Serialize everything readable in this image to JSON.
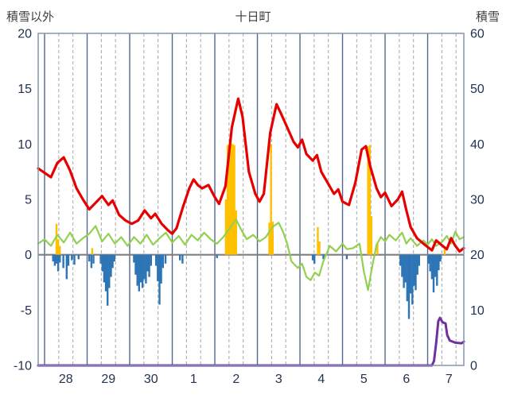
{
  "header": {
    "left_axis_title": "積雪以外",
    "title": "十日町",
    "right_axis_title": "積雪"
  },
  "chart_data": {
    "type": "line",
    "title": "十日町",
    "left_axis": {
      "label": "積雪以外",
      "min": -10,
      "max": 20,
      "ticks": [
        20,
        15,
        10,
        5,
        0,
        -5,
        -10
      ]
    },
    "right_axis": {
      "label": "積雪",
      "min": 0,
      "max": 60,
      "ticks": [
        60,
        50,
        40,
        30,
        20,
        10,
        0
      ]
    },
    "x_axis": {
      "domain": [
        -0.15,
        9.85
      ],
      "day_labels": [
        "28",
        "29",
        "30",
        "1",
        "2",
        "3",
        "4",
        "5",
        "6",
        "7"
      ],
      "minor_gridlines_per_day": 2
    },
    "grid": {
      "vertical_solid_at_midnights": true,
      "vertical_dashed_minor": true,
      "horizontal": false,
      "zero_line": true
    },
    "colors": {
      "red": "#e60000",
      "green": "#92d050",
      "orange": "#ffc000",
      "blue": "#2e75b6",
      "purple": "#7030a0",
      "grid_minor": "#a6a6a6",
      "grid_major": "#54678f",
      "border": "#8496b0",
      "zero_line": "#7f7f7f",
      "text": "#233250"
    },
    "series": {
      "red_line": {
        "axis": "left",
        "color_key": "red",
        "points": [
          [
            -0.15,
            7.8
          ],
          [
            0,
            7.4
          ],
          [
            0.15,
            7.0
          ],
          [
            0.3,
            8.3
          ],
          [
            0.45,
            8.8
          ],
          [
            0.6,
            7.6
          ],
          [
            0.75,
            6.0
          ],
          [
            0.9,
            5.0
          ],
          [
            1.05,
            4.1
          ],
          [
            1.2,
            4.7
          ],
          [
            1.35,
            5.3
          ],
          [
            1.5,
            4.5
          ],
          [
            1.6,
            4.9
          ],
          [
            1.75,
            3.6
          ],
          [
            1.9,
            3.1
          ],
          [
            2.05,
            2.8
          ],
          [
            2.2,
            3.1
          ],
          [
            2.35,
            4.0
          ],
          [
            2.5,
            3.3
          ],
          [
            2.6,
            3.7
          ],
          [
            2.75,
            2.8
          ],
          [
            2.9,
            2.2
          ],
          [
            3.0,
            1.9
          ],
          [
            3.1,
            2.4
          ],
          [
            3.25,
            4.3
          ],
          [
            3.4,
            6.0
          ],
          [
            3.5,
            6.8
          ],
          [
            3.6,
            6.3
          ],
          [
            3.7,
            6.0
          ],
          [
            3.85,
            6.3
          ],
          [
            4.0,
            5.2
          ],
          [
            4.1,
            4.6
          ],
          [
            4.25,
            6.2
          ],
          [
            4.4,
            11.5
          ],
          [
            4.55,
            14.1
          ],
          [
            4.65,
            12.5
          ],
          [
            4.8,
            7.5
          ],
          [
            4.95,
            5.5
          ],
          [
            5.05,
            4.8
          ],
          [
            5.15,
            5.5
          ],
          [
            5.3,
            11.0
          ],
          [
            5.45,
            13.6
          ],
          [
            5.55,
            12.8
          ],
          [
            5.7,
            11.5
          ],
          [
            5.85,
            10.2
          ],
          [
            5.95,
            9.7
          ],
          [
            6.05,
            10.4
          ],
          [
            6.15,
            9.1
          ],
          [
            6.3,
            8.5
          ],
          [
            6.4,
            9.0
          ],
          [
            6.5,
            7.5
          ],
          [
            6.65,
            6.5
          ],
          [
            6.8,
            5.5
          ],
          [
            6.9,
            5.9
          ],
          [
            7.0,
            4.8
          ],
          [
            7.15,
            4.5
          ],
          [
            7.3,
            6.5
          ],
          [
            7.45,
            9.5
          ],
          [
            7.55,
            9.8
          ],
          [
            7.65,
            8.0
          ],
          [
            7.8,
            6.0
          ],
          [
            7.9,
            5.2
          ],
          [
            8.0,
            5.6
          ],
          [
            8.15,
            4.4
          ],
          [
            8.3,
            5.0
          ],
          [
            8.4,
            5.7
          ],
          [
            8.5,
            4.0
          ],
          [
            8.6,
            2.5
          ],
          [
            8.75,
            1.5
          ],
          [
            8.9,
            1.0
          ],
          [
            9.0,
            0.7
          ],
          [
            9.1,
            0.4
          ],
          [
            9.2,
            1.3
          ],
          [
            9.35,
            0.8
          ],
          [
            9.45,
            0.5
          ],
          [
            9.55,
            1.5
          ],
          [
            9.65,
            0.8
          ],
          [
            9.75,
            0.3
          ],
          [
            9.85,
            0.6
          ]
        ]
      },
      "green_line": {
        "axis": "left",
        "color_key": "green",
        "points": [
          [
            -0.15,
            1.0
          ],
          [
            0,
            1.4
          ],
          [
            0.15,
            0.8
          ],
          [
            0.3,
            1.8
          ],
          [
            0.45,
            1.1
          ],
          [
            0.6,
            2.0
          ],
          [
            0.75,
            1.0
          ],
          [
            0.9,
            1.5
          ],
          [
            1.05,
            1.9
          ],
          [
            1.2,
            2.6
          ],
          [
            1.35,
            1.2
          ],
          [
            1.5,
            1.9
          ],
          [
            1.65,
            1.0
          ],
          [
            1.8,
            1.6
          ],
          [
            1.95,
            0.8
          ],
          [
            2.1,
            1.6
          ],
          [
            2.25,
            1.0
          ],
          [
            2.4,
            1.8
          ],
          [
            2.55,
            0.9
          ],
          [
            2.7,
            1.5
          ],
          [
            2.85,
            2.0
          ],
          [
            3.0,
            1.1
          ],
          [
            3.15,
            1.7
          ],
          [
            3.3,
            0.9
          ],
          [
            3.45,
            1.8
          ],
          [
            3.6,
            1.3
          ],
          [
            3.75,
            2.0
          ],
          [
            3.9,
            1.4
          ],
          [
            4.05,
            1.0
          ],
          [
            4.2,
            1.6
          ],
          [
            4.35,
            2.4
          ],
          [
            4.5,
            3.2
          ],
          [
            4.6,
            2.4
          ],
          [
            4.75,
            1.4
          ],
          [
            4.9,
            1.8
          ],
          [
            5.05,
            1.2
          ],
          [
            5.2,
            1.6
          ],
          [
            5.35,
            2.5
          ],
          [
            5.5,
            2.9
          ],
          [
            5.6,
            2.1
          ],
          [
            5.7,
            1.0
          ],
          [
            5.8,
            -0.6
          ],
          [
            5.95,
            -1.2
          ],
          [
            6.05,
            -0.8
          ],
          [
            6.15,
            -2.0
          ],
          [
            6.25,
            -2.3
          ],
          [
            6.35,
            -1.6
          ],
          [
            6.45,
            -1.9
          ],
          [
            6.55,
            -0.6
          ],
          [
            6.7,
            0.8
          ],
          [
            6.85,
            0.3
          ],
          [
            7.0,
            1.0
          ],
          [
            7.1,
            0.5
          ],
          [
            7.25,
            0.6
          ],
          [
            7.4,
            1.0
          ],
          [
            7.5,
            -1.5
          ],
          [
            7.6,
            -3.2
          ],
          [
            7.7,
            -1.0
          ],
          [
            7.8,
            0.9
          ],
          [
            7.9,
            1.6
          ],
          [
            8.0,
            1.2
          ],
          [
            8.1,
            1.8
          ],
          [
            8.25,
            1.3
          ],
          [
            8.4,
            2.0
          ],
          [
            8.5,
            1.0
          ],
          [
            8.6,
            1.5
          ],
          [
            8.75,
            0.8
          ],
          [
            8.9,
            1.3
          ],
          [
            9.0,
            0.9
          ],
          [
            9.1,
            1.4
          ],
          [
            9.2,
            0.8
          ],
          [
            9.35,
            1.2
          ],
          [
            9.45,
            1.7
          ],
          [
            9.55,
            1.0
          ],
          [
            9.65,
            2.1
          ],
          [
            9.75,
            1.4
          ],
          [
            9.85,
            1.6
          ]
        ]
      },
      "orange_bars": {
        "axis": "left",
        "color_key": "orange",
        "points": [
          [
            0.28,
            2.8
          ],
          [
            0.32,
            1.4
          ],
          [
            0.36,
            0.8
          ],
          [
            1.12,
            0.6
          ],
          [
            4.26,
            5.0
          ],
          [
            4.3,
            9.9
          ],
          [
            4.34,
            10.0
          ],
          [
            4.38,
            10.0
          ],
          [
            4.42,
            10.0
          ],
          [
            4.46,
            9.9
          ],
          [
            4.5,
            4.0
          ],
          [
            5.28,
            2.9
          ],
          [
            5.32,
            10.0
          ],
          [
            5.36,
            3.0
          ],
          [
            6.42,
            2.5
          ],
          [
            6.46,
            1.2
          ],
          [
            7.6,
            9.8
          ],
          [
            7.64,
            9.9
          ],
          [
            7.68,
            3.5
          ],
          [
            7.82,
            1.0
          ],
          [
            9.4,
            0.5
          ]
        ]
      },
      "blue_bars": {
        "axis": "left",
        "color_key": "blue",
        "points": [
          [
            0.2,
            -0.6
          ],
          [
            0.24,
            -1.0
          ],
          [
            0.28,
            -0.8
          ],
          [
            0.32,
            -1.5
          ],
          [
            0.36,
            -0.7
          ],
          [
            0.44,
            -1.2
          ],
          [
            0.52,
            -2.2
          ],
          [
            0.56,
            -1.0
          ],
          [
            0.64,
            -0.5
          ],
          [
            0.7,
            -0.9
          ],
          [
            0.8,
            -0.4
          ],
          [
            1.05,
            -0.6
          ],
          [
            1.1,
            -1.2
          ],
          [
            1.15,
            -0.8
          ],
          [
            1.32,
            -0.8
          ],
          [
            1.36,
            -1.5
          ],
          [
            1.4,
            -2.5
          ],
          [
            1.44,
            -3.3
          ],
          [
            1.48,
            -4.6
          ],
          [
            1.52,
            -3.0
          ],
          [
            1.56,
            -2.0
          ],
          [
            1.6,
            -1.2
          ],
          [
            1.64,
            -0.6
          ],
          [
            2.1,
            -0.7
          ],
          [
            2.14,
            -1.8
          ],
          [
            2.18,
            -2.8
          ],
          [
            2.22,
            -3.3
          ],
          [
            2.26,
            -2.5
          ],
          [
            2.3,
            -3.0
          ],
          [
            2.34,
            -2.2
          ],
          [
            2.38,
            -2.6
          ],
          [
            2.42,
            -1.5
          ],
          [
            2.46,
            -2.0
          ],
          [
            2.5,
            -1.0
          ],
          [
            2.62,
            -1.0
          ],
          [
            2.66,
            -2.4
          ],
          [
            2.7,
            -4.5
          ],
          [
            2.74,
            -2.6
          ],
          [
            2.78,
            -1.2
          ],
          [
            2.84,
            -0.8
          ],
          [
            3.18,
            -0.5
          ],
          [
            3.24,
            -0.8
          ],
          [
            4.05,
            -0.3
          ],
          [
            6.3,
            -0.5
          ],
          [
            6.34,
            -0.8
          ],
          [
            6.55,
            -0.4
          ],
          [
            7.1,
            -0.4
          ],
          [
            8.36,
            -1.0
          ],
          [
            8.4,
            -2.0
          ],
          [
            8.44,
            -3.0
          ],
          [
            8.48,
            -2.5
          ],
          [
            8.52,
            -4.2
          ],
          [
            8.56,
            -5.8
          ],
          [
            8.6,
            -3.5
          ],
          [
            8.64,
            -4.5
          ],
          [
            8.68,
            -2.8
          ],
          [
            8.72,
            -3.2
          ],
          [
            8.76,
            -1.8
          ],
          [
            8.8,
            -1.0
          ],
          [
            9.02,
            -0.8
          ],
          [
            9.06,
            -1.5
          ],
          [
            9.1,
            -2.2
          ],
          [
            9.14,
            -3.4
          ],
          [
            9.18,
            -2.0
          ],
          [
            9.22,
            -2.8
          ],
          [
            9.26,
            -1.4
          ],
          [
            9.3,
            -0.6
          ]
        ]
      },
      "purple_line": {
        "axis": "right",
        "color_key": "purple",
        "points": [
          [
            -0.15,
            0
          ],
          [
            9.1,
            0
          ],
          [
            9.15,
            0.8
          ],
          [
            9.2,
            4.0
          ],
          [
            9.25,
            8.0
          ],
          [
            9.29,
            8.6
          ],
          [
            9.35,
            7.8
          ],
          [
            9.42,
            7.6
          ],
          [
            9.46,
            5.5
          ],
          [
            9.52,
            4.5
          ],
          [
            9.65,
            4.1
          ],
          [
            9.8,
            4.0
          ],
          [
            9.85,
            4.3
          ]
        ]
      }
    }
  }
}
